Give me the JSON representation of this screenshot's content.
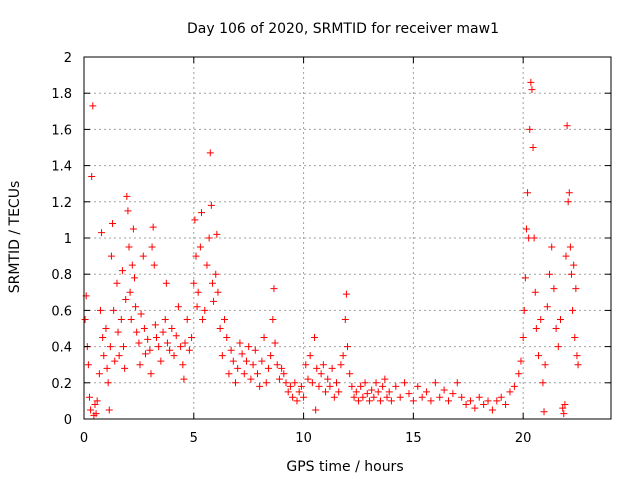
{
  "chart_data": {
    "type": "scatter",
    "title": "Day 106 of 2020, SRMTID for receiver maw1",
    "xlabel": "GPS time / hours",
    "ylabel": "SRMTID / TECUs",
    "xlim": [
      0,
      24
    ],
    "ylim": [
      0,
      2
    ],
    "xticks": [
      0,
      5,
      10,
      15,
      20
    ],
    "xtick_labels": [
      "0",
      "5",
      "10",
      "15",
      "20"
    ],
    "yticks": [
      0,
      0.2,
      0.4,
      0.6,
      0.8,
      1.0,
      1.2,
      1.4,
      1.6,
      1.8,
      2.0
    ],
    "ytick_labels": [
      "0",
      "0.2",
      "0.4",
      "0.6",
      "0.8",
      "1",
      "1.2",
      "1.4",
      "1.6",
      "1.8",
      "2"
    ],
    "grid": true,
    "marker": "plus",
    "marker_color": "#ff0000",
    "series": [
      {
        "name": "SRMTID",
        "points": [
          [
            0.05,
            0.55
          ],
          [
            0.1,
            0.68
          ],
          [
            0.15,
            0.4
          ],
          [
            0.2,
            0.3
          ],
          [
            0.25,
            0.12
          ],
          [
            0.3,
            0.05
          ],
          [
            0.35,
            1.34
          ],
          [
            0.4,
            1.73
          ],
          [
            0.45,
            0.02
          ],
          [
            0.5,
            0.08
          ],
          [
            0.55,
            0.03
          ],
          [
            0.6,
            0.1
          ],
          [
            0.7,
            0.25
          ],
          [
            0.75,
            0.6
          ],
          [
            0.8,
            1.03
          ],
          [
            0.85,
            0.45
          ],
          [
            0.9,
            0.35
          ],
          [
            1.0,
            0.5
          ],
          [
            1.05,
            0.28
          ],
          [
            1.1,
            0.2
          ],
          [
            1.15,
            0.05
          ],
          [
            1.2,
            0.4
          ],
          [
            1.25,
            0.9
          ],
          [
            1.3,
            1.08
          ],
          [
            1.35,
            0.6
          ],
          [
            1.4,
            0.32
          ],
          [
            1.5,
            0.75
          ],
          [
            1.55,
            0.48
          ],
          [
            1.6,
            0.35
          ],
          [
            1.7,
            0.55
          ],
          [
            1.75,
            0.82
          ],
          [
            1.8,
            0.4
          ],
          [
            1.85,
            0.28
          ],
          [
            1.9,
            0.66
          ],
          [
            1.95,
            1.23
          ],
          [
            2.0,
            1.15
          ],
          [
            2.05,
            0.95
          ],
          [
            2.1,
            0.7
          ],
          [
            2.15,
            0.55
          ],
          [
            2.2,
            0.85
          ],
          [
            2.25,
            1.05
          ],
          [
            2.3,
            0.78
          ],
          [
            2.35,
            0.62
          ],
          [
            2.4,
            0.48
          ],
          [
            2.5,
            0.42
          ],
          [
            2.55,
            0.3
          ],
          [
            2.6,
            0.58
          ],
          [
            2.7,
            0.9
          ],
          [
            2.75,
            0.5
          ],
          [
            2.8,
            0.36
          ],
          [
            2.9,
            0.44
          ],
          [
            3.0,
            0.38
          ],
          [
            3.05,
            0.25
          ],
          [
            3.1,
            0.95
          ],
          [
            3.15,
            1.06
          ],
          [
            3.2,
            0.85
          ],
          [
            3.25,
            0.52
          ],
          [
            3.3,
            0.45
          ],
          [
            3.4,
            0.4
          ],
          [
            3.5,
            0.32
          ],
          [
            3.6,
            0.48
          ],
          [
            3.7,
            0.55
          ],
          [
            3.75,
            0.75
          ],
          [
            3.8,
            0.42
          ],
          [
            3.9,
            0.38
          ],
          [
            4.0,
            0.5
          ],
          [
            4.1,
            0.35
          ],
          [
            4.2,
            0.46
          ],
          [
            4.3,
            0.62
          ],
          [
            4.4,
            0.4
          ],
          [
            4.5,
            0.3
          ],
          [
            4.55,
            0.22
          ],
          [
            4.6,
            0.42
          ],
          [
            4.7,
            0.55
          ],
          [
            4.8,
            0.38
          ],
          [
            4.9,
            0.45
          ],
          [
            5.0,
            0.75
          ],
          [
            5.05,
            1.1
          ],
          [
            5.1,
            0.9
          ],
          [
            5.15,
            0.62
          ],
          [
            5.2,
            0.7
          ],
          [
            5.3,
            0.95
          ],
          [
            5.35,
            1.14
          ],
          [
            5.4,
            0.55
          ],
          [
            5.5,
            0.6
          ],
          [
            5.6,
            0.85
          ],
          [
            5.7,
            1.0
          ],
          [
            5.75,
            1.47
          ],
          [
            5.8,
            1.18
          ],
          [
            5.85,
            0.75
          ],
          [
            5.9,
            0.65
          ],
          [
            6.0,
            0.8
          ],
          [
            6.05,
            1.02
          ],
          [
            6.1,
            0.7
          ],
          [
            6.2,
            0.5
          ],
          [
            6.3,
            0.35
          ],
          [
            6.4,
            0.55
          ],
          [
            6.5,
            0.45
          ],
          [
            6.6,
            0.25
          ],
          [
            6.7,
            0.38
          ],
          [
            6.8,
            0.32
          ],
          [
            6.9,
            0.2
          ],
          [
            7.0,
            0.28
          ],
          [
            7.1,
            0.42
          ],
          [
            7.2,
            0.36
          ],
          [
            7.3,
            0.25
          ],
          [
            7.4,
            0.32
          ],
          [
            7.5,
            0.4
          ],
          [
            7.6,
            0.22
          ],
          [
            7.7,
            0.3
          ],
          [
            7.8,
            0.38
          ],
          [
            7.9,
            0.25
          ],
          [
            8.0,
            0.18
          ],
          [
            8.1,
            0.32
          ],
          [
            8.2,
            0.45
          ],
          [
            8.3,
            0.2
          ],
          [
            8.4,
            0.28
          ],
          [
            8.5,
            0.35
          ],
          [
            8.6,
            0.55
          ],
          [
            8.65,
            0.72
          ],
          [
            8.7,
            0.42
          ],
          [
            8.8,
            0.3
          ],
          [
            8.9,
            0.22
          ],
          [
            9.0,
            0.28
          ],
          [
            9.1,
            0.25
          ],
          [
            9.2,
            0.2
          ],
          [
            9.3,
            0.15
          ],
          [
            9.4,
            0.18
          ],
          [
            9.5,
            0.12
          ],
          [
            9.6,
            0.2
          ],
          [
            9.7,
            0.1
          ],
          [
            9.8,
            0.15
          ],
          [
            9.9,
            0.18
          ],
          [
            10.0,
            0.12
          ],
          [
            10.1,
            0.3
          ],
          [
            10.2,
            0.22
          ],
          [
            10.3,
            0.35
          ],
          [
            10.4,
            0.2
          ],
          [
            10.5,
            0.45
          ],
          [
            10.55,
            0.05
          ],
          [
            10.6,
            0.28
          ],
          [
            10.7,
            0.18
          ],
          [
            10.8,
            0.25
          ],
          [
            10.9,
            0.3
          ],
          [
            11.0,
            0.15
          ],
          [
            11.1,
            0.22
          ],
          [
            11.2,
            0.18
          ],
          [
            11.3,
            0.28
          ],
          [
            11.4,
            0.12
          ],
          [
            11.5,
            0.2
          ],
          [
            11.6,
            0.15
          ],
          [
            11.7,
            0.3
          ],
          [
            11.8,
            0.35
          ],
          [
            11.9,
            0.55
          ],
          [
            11.95,
            0.69
          ],
          [
            12.0,
            0.4
          ],
          [
            12.1,
            0.25
          ],
          [
            12.2,
            0.18
          ],
          [
            12.3,
            0.12
          ],
          [
            12.4,
            0.15
          ],
          [
            12.5,
            0.1
          ],
          [
            12.6,
            0.18
          ],
          [
            12.7,
            0.12
          ],
          [
            12.8,
            0.2
          ],
          [
            12.9,
            0.14
          ],
          [
            13.0,
            0.1
          ],
          [
            13.1,
            0.16
          ],
          [
            13.2,
            0.12
          ],
          [
            13.3,
            0.2
          ],
          [
            13.4,
            0.15
          ],
          [
            13.5,
            0.1
          ],
          [
            13.6,
            0.18
          ],
          [
            13.7,
            0.22
          ],
          [
            13.8,
            0.12
          ],
          [
            13.9,
            0.15
          ],
          [
            14.0,
            0.1
          ],
          [
            14.2,
            0.18
          ],
          [
            14.4,
            0.12
          ],
          [
            14.6,
            0.2
          ],
          [
            14.8,
            0.14
          ],
          [
            15.0,
            0.1
          ],
          [
            15.2,
            0.18
          ],
          [
            15.4,
            0.12
          ],
          [
            15.6,
            0.15
          ],
          [
            15.8,
            0.1
          ],
          [
            16.0,
            0.2
          ],
          [
            16.2,
            0.12
          ],
          [
            16.4,
            0.16
          ],
          [
            16.6,
            0.1
          ],
          [
            16.8,
            0.14
          ],
          [
            17.0,
            0.2
          ],
          [
            17.2,
            0.12
          ],
          [
            17.4,
            0.08
          ],
          [
            17.6,
            0.1
          ],
          [
            17.8,
            0.06
          ],
          [
            18.0,
            0.12
          ],
          [
            18.2,
            0.08
          ],
          [
            18.4,
            0.1
          ],
          [
            18.6,
            0.05
          ],
          [
            18.8,
            0.1
          ],
          [
            19.0,
            0.12
          ],
          [
            19.2,
            0.08
          ],
          [
            19.4,
            0.15
          ],
          [
            19.6,
            0.18
          ],
          [
            19.8,
            0.25
          ],
          [
            19.9,
            0.32
          ],
          [
            20.0,
            0.45
          ],
          [
            20.05,
            0.6
          ],
          [
            20.1,
            0.78
          ],
          [
            20.15,
            1.05
          ],
          [
            20.2,
            1.25
          ],
          [
            20.25,
            1.0
          ],
          [
            20.3,
            1.6
          ],
          [
            20.35,
            1.86
          ],
          [
            20.4,
            1.82
          ],
          [
            20.45,
            1.5
          ],
          [
            20.5,
            1.0
          ],
          [
            20.55,
            0.7
          ],
          [
            20.6,
            0.5
          ],
          [
            20.7,
            0.35
          ],
          [
            20.8,
            0.55
          ],
          [
            20.9,
            0.2
          ],
          [
            20.95,
            0.04
          ],
          [
            21.0,
            0.3
          ],
          [
            21.1,
            0.62
          ],
          [
            21.2,
            0.8
          ],
          [
            21.3,
            0.95
          ],
          [
            21.4,
            0.72
          ],
          [
            21.5,
            0.5
          ],
          [
            21.6,
            0.4
          ],
          [
            21.7,
            0.55
          ],
          [
            21.8,
            0.06
          ],
          [
            21.85,
            0.03
          ],
          [
            21.9,
            0.08
          ],
          [
            21.95,
            0.9
          ],
          [
            22.0,
            1.62
          ],
          [
            22.05,
            1.2
          ],
          [
            22.1,
            1.25
          ],
          [
            22.15,
            0.95
          ],
          [
            22.2,
            0.8
          ],
          [
            22.25,
            0.6
          ],
          [
            22.3,
            0.85
          ],
          [
            22.35,
            0.45
          ],
          [
            22.4,
            0.72
          ],
          [
            22.45,
            0.35
          ],
          [
            22.5,
            0.3
          ]
        ]
      }
    ]
  }
}
